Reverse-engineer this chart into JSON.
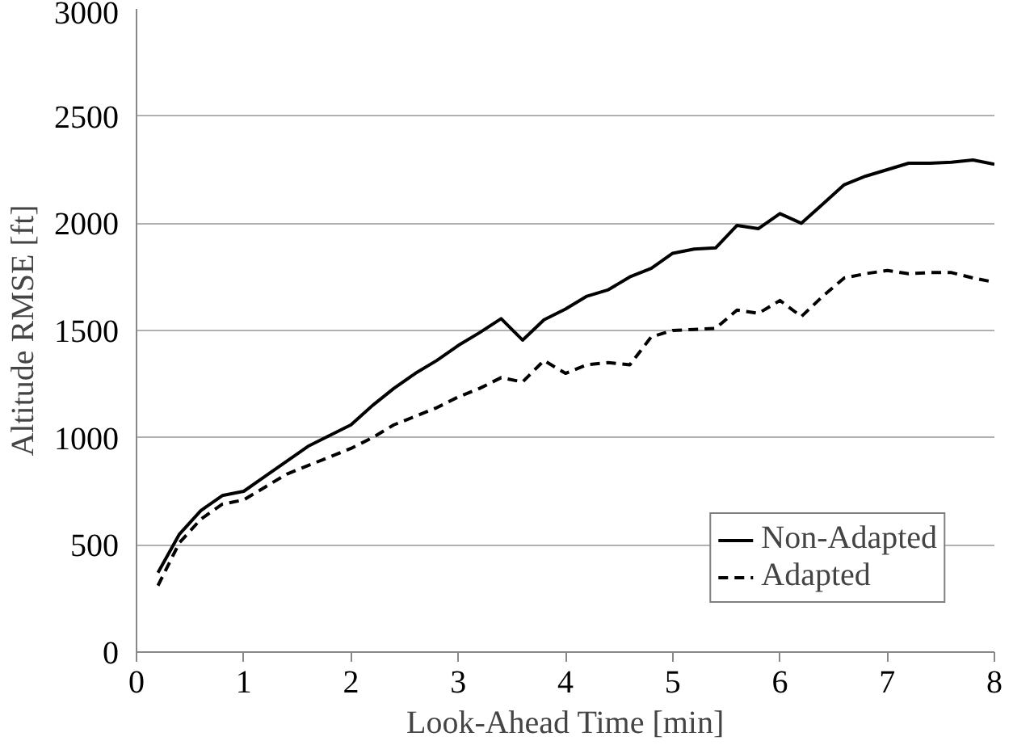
{
  "chart_data": {
    "type": "line",
    "xlabel": "Look-Ahead Time [min]",
    "ylabel": "Altitude RMSE [ft]",
    "xlim": [
      0,
      8
    ],
    "xticks": [
      0,
      1,
      2,
      3,
      4,
      5,
      6,
      7,
      8
    ],
    "ylim": [
      0,
      3000
    ],
    "yticks": [
      0,
      500,
      1000,
      1500,
      2000,
      2500,
      3000
    ],
    "grid": "y",
    "legend": "bottom right",
    "x": [
      0.2,
      0.4,
      0.6,
      0.8,
      1.0,
      1.2,
      1.4,
      1.6,
      1.8,
      2.0,
      2.2,
      2.4,
      2.6,
      2.8,
      3.0,
      3.2,
      3.4,
      3.6,
      3.8,
      4.0,
      4.2,
      4.4,
      4.6,
      4.8,
      5.0,
      5.2,
      5.4,
      5.6,
      5.8,
      6.0,
      6.2,
      6.4,
      6.6,
      6.8,
      7.0,
      7.2,
      7.4,
      7.6,
      7.8,
      8.0
    ],
    "series": [
      {
        "name": "Non-Adapted",
        "color": "#000000",
        "line_style": "solid",
        "values": [
          370,
          550,
          660,
          730,
          750,
          820,
          890,
          960,
          1010,
          1060,
          1150,
          1230,
          1300,
          1360,
          1430,
          1490,
          1555,
          1455,
          1550,
          1600,
          1660,
          1690,
          1750,
          1790,
          1860,
          1880,
          1885,
          1990,
          1975,
          2045,
          2000,
          2090,
          2180,
          2220,
          2250,
          2280,
          2280,
          2285,
          2295,
          2275
        ]
      },
      {
        "name": "Adapted",
        "color": "#000000",
        "line_style": "dashed",
        "values": [
          310,
          510,
          620,
          690,
          710,
          770,
          830,
          870,
          910,
          950,
          1000,
          1060,
          1100,
          1140,
          1190,
          1230,
          1280,
          1260,
          1360,
          1300,
          1340,
          1350,
          1340,
          1470,
          1500,
          1505,
          1510,
          1595,
          1580,
          1640,
          1565,
          1660,
          1745,
          1765,
          1780,
          1765,
          1770,
          1770,
          1745,
          1725
        ]
      }
    ]
  }
}
